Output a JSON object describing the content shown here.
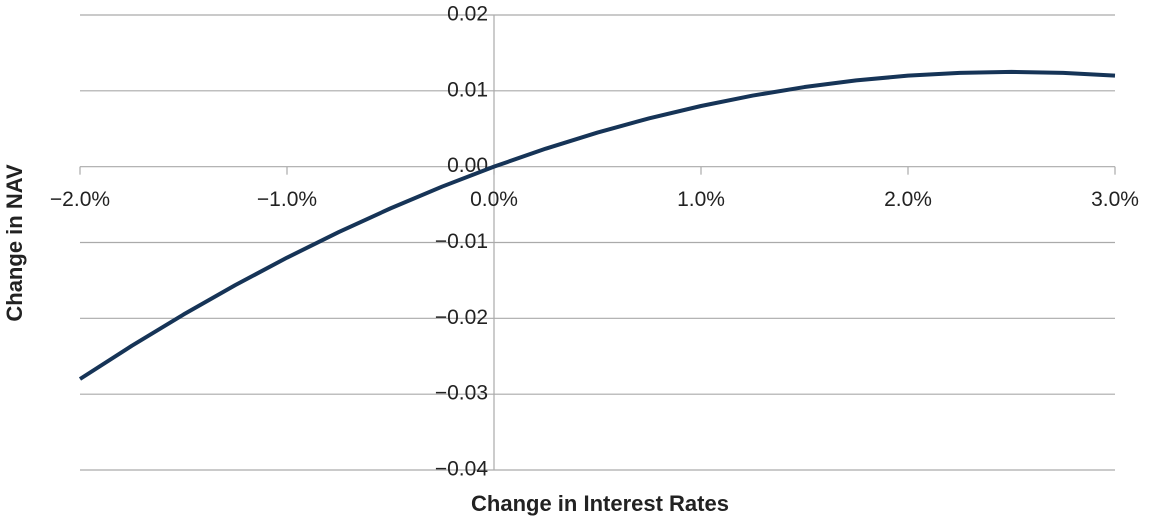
{
  "chart_data": {
    "type": "line",
    "x_label": "Change in Interest Rates",
    "y_label": "Change in NAV",
    "x": [
      -2,
      -1.75,
      -1.5,
      -1.25,
      -1,
      -0.75,
      -0.5,
      -0.25,
      0,
      0.25,
      0.5,
      0.75,
      1,
      1.25,
      1.5,
      1.75,
      2,
      2.25,
      2.5,
      2.75,
      3
    ],
    "values": [
      -0.028,
      -0.023625,
      -0.0195,
      -0.015625,
      -0.012,
      -0.008625,
      -0.0055,
      -0.002625,
      0,
      0.002375,
      0.0045,
      0.006375,
      0.008,
      0.009375,
      0.0105,
      0.011375,
      0.012,
      0.012375,
      0.0125,
      0.012375,
      0.012
    ],
    "color": "#163457",
    "xlim": [
      -2,
      3
    ],
    "ylim": [
      -0.04,
      0.02
    ],
    "xticks": [
      {
        "value": -2,
        "label": "−2.0%"
      },
      {
        "value": -1,
        "label": "−1.0%"
      },
      {
        "value": 0,
        "label": "0.0%"
      },
      {
        "value": 1,
        "label": "1.0%"
      },
      {
        "value": 2,
        "label": "2.0%"
      },
      {
        "value": 3,
        "label": "3.0%"
      }
    ],
    "yticks": [
      {
        "value": -0.04,
        "label": "−0.04"
      },
      {
        "value": -0.03,
        "label": "−0.03"
      },
      {
        "value": -0.02,
        "label": "−0.02"
      },
      {
        "value": -0.01,
        "label": "−0.01"
      },
      {
        "value": 0,
        "label": "0.00"
      },
      0.01,
      0.02
    ],
    "grid": true
  }
}
